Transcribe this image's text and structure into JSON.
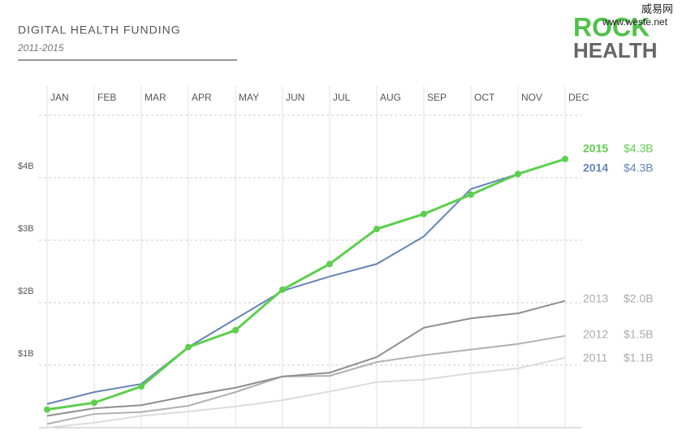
{
  "chart_data": {
    "type": "line",
    "title": "DIGITAL HEALTH FUNDING",
    "subtitle": "2011-2015",
    "logo": [
      "ROCK",
      "HEALTH"
    ],
    "watermark": [
      "威易网",
      "www.weste.net"
    ],
    "categories": [
      "JAN",
      "FEB",
      "MAR",
      "APR",
      "MAY",
      "JUN",
      "JUL",
      "AUG",
      "SEP",
      "OCT",
      "NOV",
      "DEC"
    ],
    "ylim": [
      0,
      5
    ],
    "yticks": [
      {
        "value": 1,
        "label": "$1B"
      },
      {
        "value": 2,
        "label": "$2B"
      },
      {
        "value": 3,
        "label": "$3B"
      },
      {
        "value": 4,
        "label": "$4B"
      }
    ],
    "grid": true,
    "series": [
      {
        "name": "2011",
        "color": "#dcdcdc",
        "end_label": "$1.1B",
        "values": [
          0,
          0.08,
          0.19,
          0.26,
          0.34,
          0.44,
          0.58,
          0.73,
          0.77,
          0.87,
          0.95,
          1.12
        ]
      },
      {
        "name": "2012",
        "color": "#b0b0b0",
        "end_label": "$1.5B",
        "values": [
          0.06,
          0.22,
          0.25,
          0.35,
          0.57,
          0.82,
          0.83,
          1.05,
          1.16,
          1.25,
          1.34,
          1.47
        ]
      },
      {
        "name": "2013",
        "color": "#8e8e8e",
        "end_label": "$2.0B",
        "values": [
          0.19,
          0.31,
          0.36,
          0.51,
          0.64,
          0.82,
          0.88,
          1.13,
          1.6,
          1.75,
          1.83,
          2.03
        ]
      },
      {
        "name": "2014",
        "color": "#6584b6",
        "end_label": "$4.3B",
        "values": [
          0.38,
          0.57,
          0.7,
          1.29,
          1.74,
          2.19,
          2.42,
          2.62,
          3.06,
          3.82,
          4.06,
          4.3
        ]
      },
      {
        "name": "2015",
        "color": "#5ccf4e",
        "end_label": "$4.3B",
        "markers": true,
        "values": [
          0.29,
          0.4,
          0.66,
          1.29,
          1.56,
          2.21,
          2.62,
          3.18,
          3.42,
          3.73,
          4.06,
          4.3
        ]
      }
    ]
  }
}
